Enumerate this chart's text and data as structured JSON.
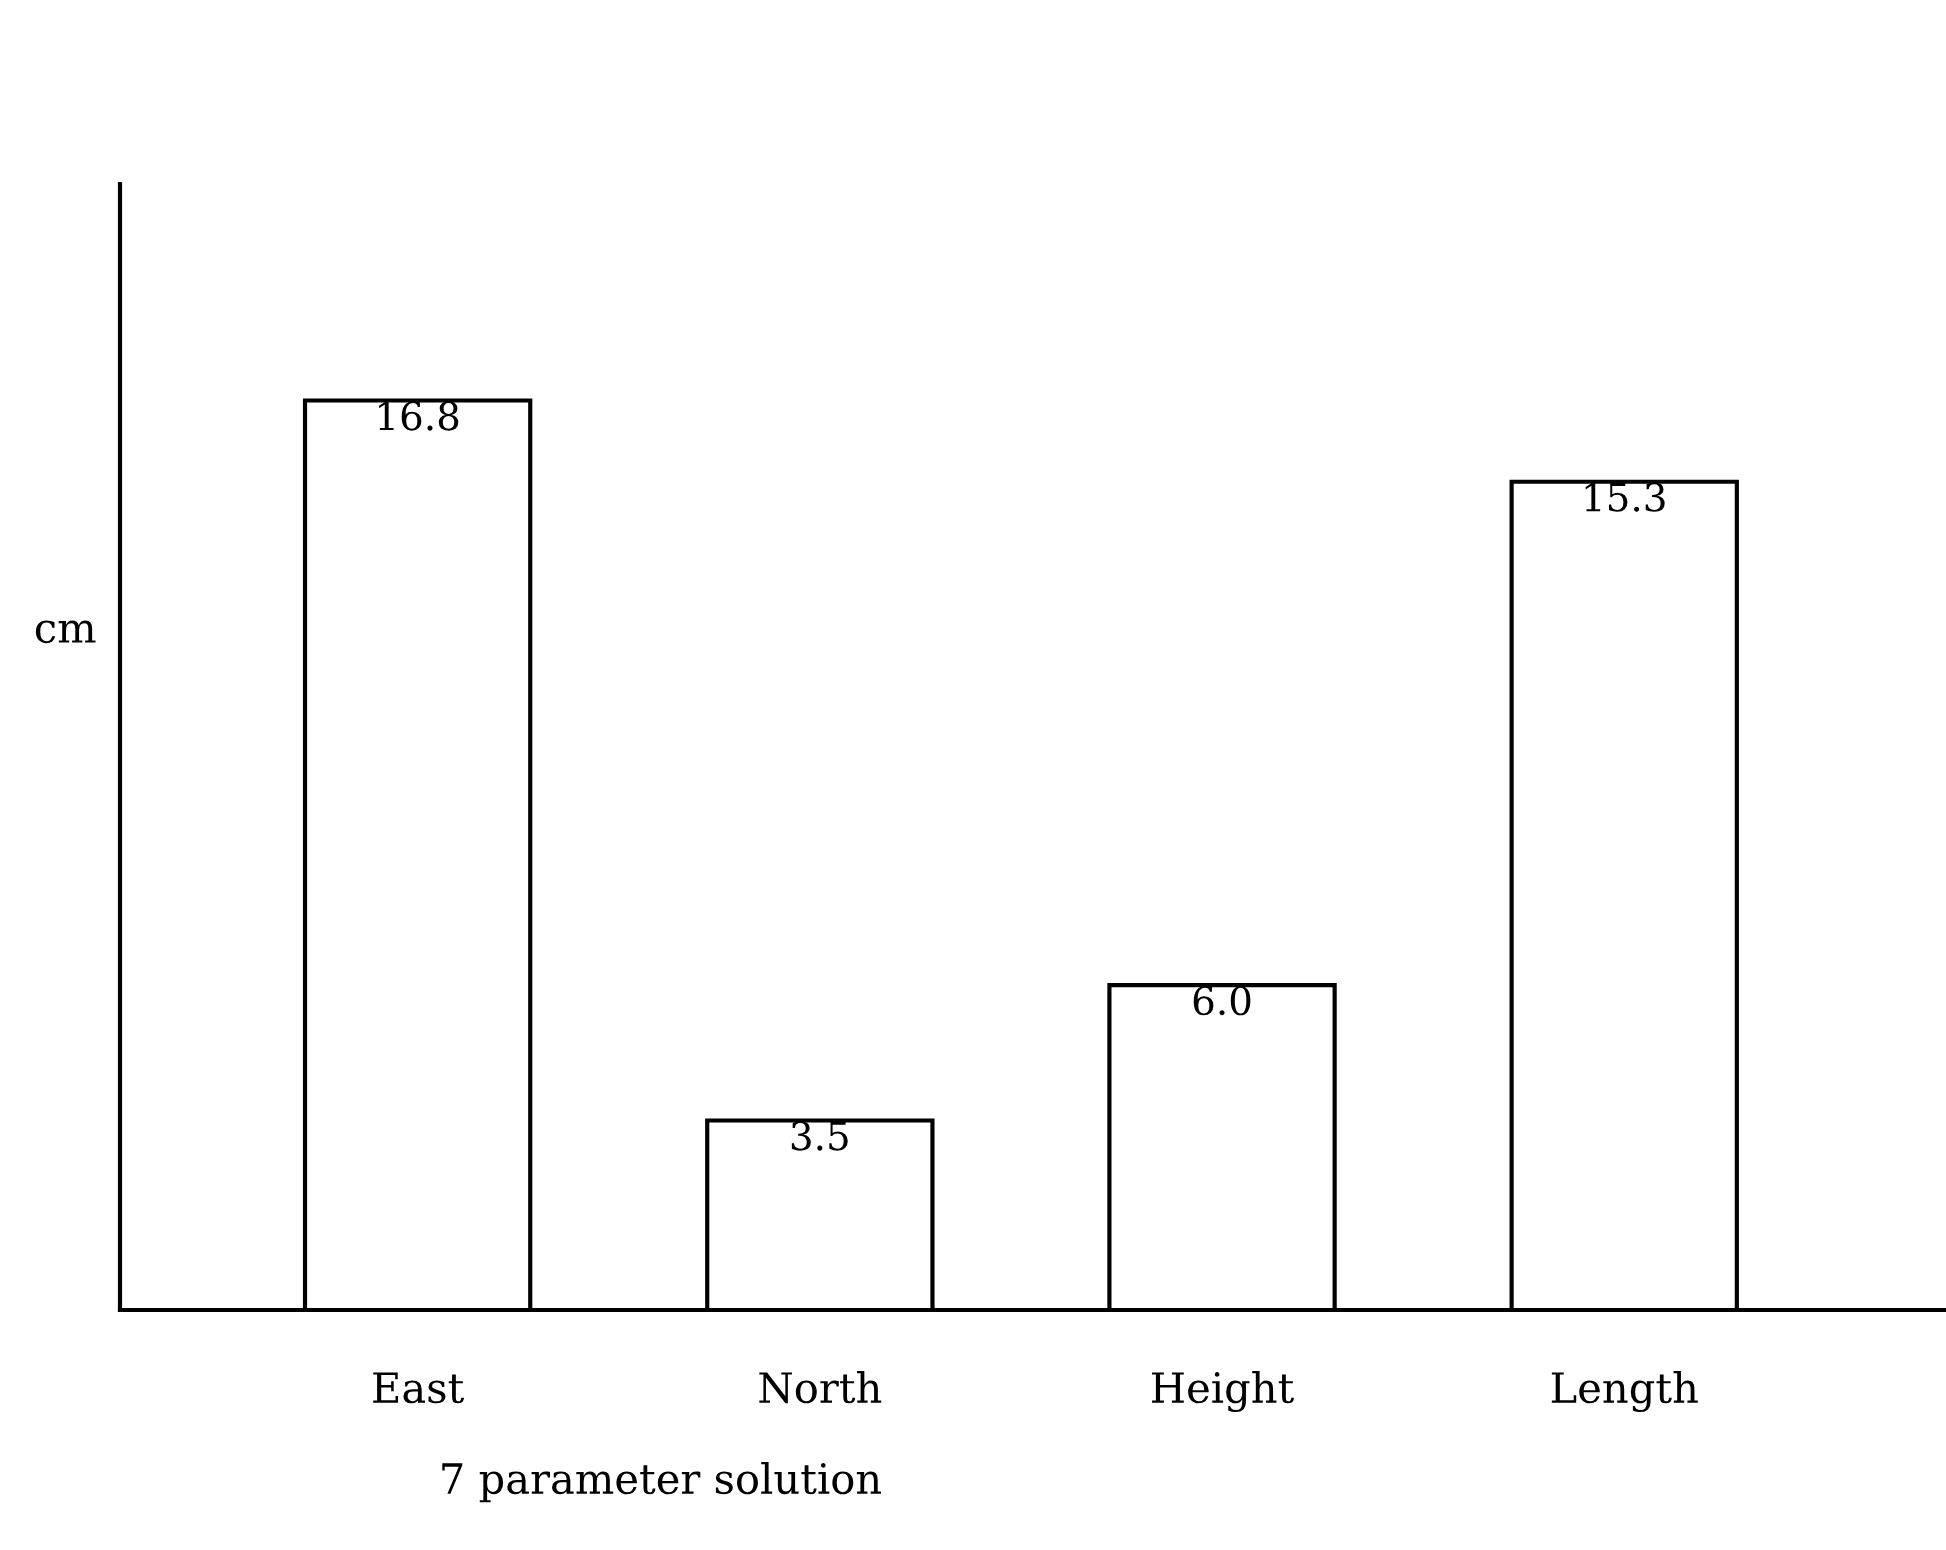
{
  "chart_data": {
    "type": "bar",
    "ylabel": "cm",
    "xlabel": "7 parameter solution",
    "categories": [
      "East",
      "North",
      "Height",
      "Length"
    ],
    "values": [
      16.8,
      3.5,
      6.0,
      15.3
    ],
    "value_labels": [
      "16.8",
      "3.5",
      "6.0",
      "15.3"
    ],
    "color": "#ffffff",
    "ylim": [
      0,
      20.8
    ],
    "tick_labels": "x",
    "grid": false,
    "legend": false
  }
}
